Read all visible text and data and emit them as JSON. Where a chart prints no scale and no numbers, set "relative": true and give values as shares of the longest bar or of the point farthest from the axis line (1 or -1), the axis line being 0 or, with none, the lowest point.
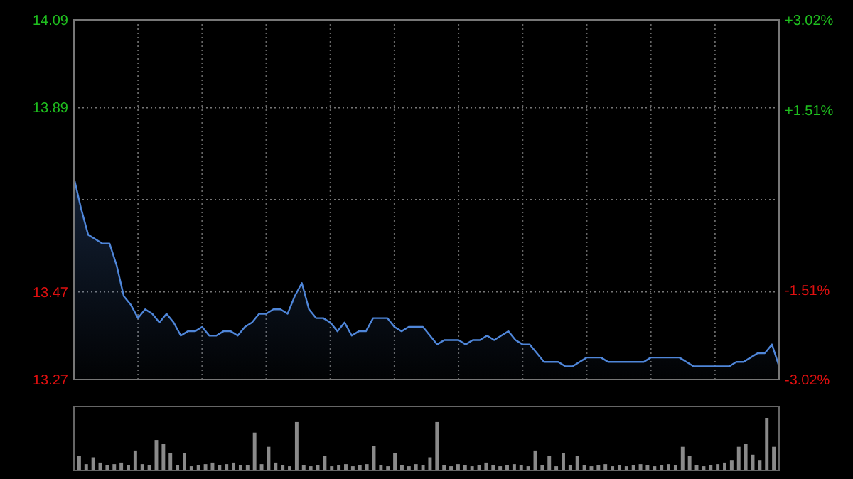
{
  "chart_data": [
    {
      "type": "area",
      "categories": [
        null,
        null,
        null,
        null,
        null,
        null,
        null,
        null,
        null,
        null,
        null,
        null,
        null,
        null,
        null,
        null,
        null,
        null,
        null,
        null,
        null,
        null,
        null,
        null,
        null,
        null,
        null,
        null,
        null,
        null,
        null,
        null,
        null,
        null,
        null,
        null,
        null,
        null,
        null,
        null,
        null,
        null,
        null,
        null,
        null,
        null,
        null,
        null,
        null,
        null,
        null,
        null,
        null,
        null,
        null,
        null,
        null,
        null,
        null,
        null,
        null,
        null,
        null,
        null,
        null,
        null,
        null,
        null,
        null,
        null,
        null,
        null,
        null,
        null,
        null,
        null,
        null,
        null,
        null,
        null,
        null,
        null,
        null,
        null,
        null,
        null,
        null,
        null,
        null,
        null,
        null,
        null,
        null,
        null,
        null,
        null,
        null,
        null,
        null,
        null
      ],
      "series": [
        {
          "color": "#4f86d9",
          "values": [
            13.73,
            13.66,
            13.6,
            13.59,
            13.58,
            13.58,
            13.53,
            13.46,
            13.44,
            13.41,
            13.43,
            13.42,
            13.4,
            13.42,
            13.4,
            13.37,
            13.38,
            13.38,
            13.39,
            13.37,
            13.37,
            13.38,
            13.38,
            13.37,
            13.39,
            13.4,
            13.42,
            13.42,
            13.43,
            13.43,
            13.42,
            13.46,
            13.49,
            13.43,
            13.41,
            13.41,
            13.4,
            13.38,
            13.4,
            13.37,
            13.38,
            13.38,
            13.41,
            13.41,
            13.41,
            13.39,
            13.38,
            13.39,
            13.39,
            13.39,
            13.37,
            13.35,
            13.36,
            13.36,
            13.36,
            13.35,
            13.36,
            13.36,
            13.37,
            13.36,
            13.37,
            13.38,
            13.36,
            13.35,
            13.35,
            13.33,
            13.31,
            13.31,
            13.31,
            13.3,
            13.3,
            13.31,
            13.32,
            13.32,
            13.32,
            13.31,
            13.31,
            13.31,
            13.31,
            13.31,
            13.31,
            13.32,
            13.32,
            13.32,
            13.32,
            13.32,
            13.31,
            13.3,
            13.3,
            13.3,
            13.3,
            13.3,
            13.3,
            13.31,
            13.31,
            13.32,
            13.33,
            13.33,
            13.35,
            13.3
          ]
        }
      ],
      "ylim": [
        13.27,
        14.09
      ],
      "yticks": [
        13.27,
        13.47,
        {
          "value": 13.68,
          "label": null
        },
        13.89,
        14.09
      ],
      "y2lim": [
        -3.02,
        3.02
      ],
      "y2ticks": [
        {
          "value": -3.02,
          "label": "-3.02%"
        },
        {
          "value": -1.51,
          "label": "-1.51%"
        },
        {
          "value": 1.51,
          "label": "+1.51%"
        },
        {
          "value": 3.02,
          "label": "+3.02%"
        }
      ],
      "tick_labels": "y",
      "grid": true
    },
    {
      "type": "bar",
      "relative": true,
      "color": "#8a8a8a",
      "categories": [
        null,
        null,
        null,
        null,
        null,
        null,
        null,
        null,
        null,
        null,
        null,
        null,
        null,
        null,
        null,
        null,
        null,
        null,
        null,
        null,
        null,
        null,
        null,
        null,
        null,
        null,
        null,
        null,
        null,
        null,
        null,
        null,
        null,
        null,
        null,
        null,
        null,
        null,
        null,
        null,
        null,
        null,
        null,
        null,
        null,
        null,
        null,
        null,
        null,
        null,
        null,
        null,
        null,
        null,
        null,
        null,
        null,
        null,
        null,
        null,
        null,
        null,
        null,
        null,
        null,
        null,
        null,
        null,
        null,
        null,
        null,
        null,
        null,
        null,
        null,
        null,
        null,
        null,
        null,
        null,
        null,
        null,
        null,
        null,
        null,
        null,
        null,
        null,
        null,
        null,
        null,
        null,
        null,
        null,
        null,
        null,
        null,
        null,
        null,
        null
      ],
      "values": [
        0.28,
        0.12,
        0.25,
        0.15,
        0.1,
        0.12,
        0.15,
        0.1,
        0.38,
        0.12,
        0.1,
        0.58,
        0.5,
        0.33,
        0.1,
        0.33,
        0.08,
        0.1,
        0.12,
        0.15,
        0.1,
        0.12,
        0.15,
        0.1,
        0.1,
        0.72,
        0.12,
        0.45,
        0.15,
        0.1,
        0.08,
        0.92,
        0.1,
        0.08,
        0.1,
        0.28,
        0.08,
        0.1,
        0.12,
        0.08,
        0.1,
        0.12,
        0.47,
        0.1,
        0.08,
        0.33,
        0.1,
        0.08,
        0.12,
        0.1,
        0.25,
        0.92,
        0.1,
        0.08,
        0.12,
        0.1,
        0.08,
        0.1,
        0.15,
        0.1,
        0.08,
        0.1,
        0.12,
        0.1,
        0.08,
        0.38,
        0.1,
        0.28,
        0.08,
        0.33,
        0.1,
        0.28,
        0.1,
        0.08,
        0.1,
        0.12,
        0.08,
        0.1,
        0.08,
        0.1,
        0.12,
        0.1,
        0.08,
        0.1,
        0.12,
        0.1,
        0.45,
        0.28,
        0.1,
        0.08,
        0.1,
        0.12,
        0.15,
        0.2,
        0.45,
        0.5,
        0.3,
        0.2,
        1,
        0.45
      ]
    }
  ]
}
